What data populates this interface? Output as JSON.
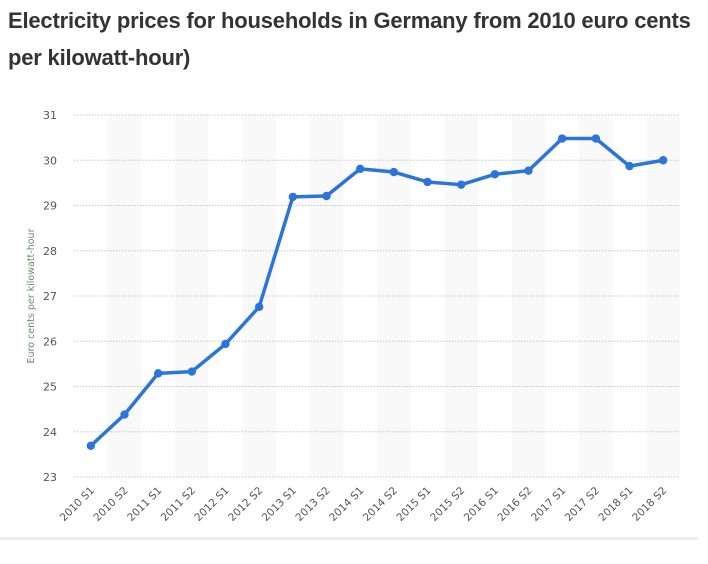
{
  "chart_data": {
    "type": "line",
    "title": "Electricity prices for households in Germany from 2010 euro cents per kilowatt-hour)",
    "xlabel": "",
    "ylabel": "Euro cents per kilowatt-hour",
    "ylim": [
      23,
      31
    ],
    "yticks": [
      "23",
      "24",
      "25",
      "26",
      "27",
      "28",
      "29",
      "30",
      "31"
    ],
    "grid": true,
    "categories": [
      "2010 S1",
      "2010 S2",
      "2011 S1",
      "2011 S2",
      "2012 S1",
      "2012 S2",
      "2013 S1",
      "2013 S2",
      "2014 S1",
      "2014 S2",
      "2015 S1",
      "2015 S2",
      "2016 S1",
      "2016 S2",
      "2017 S1",
      "2017 S2",
      "2018 S1",
      "2018 S2"
    ],
    "series": [
      {
        "values": [
          23.69,
          24.38,
          25.29,
          25.33,
          25.94,
          26.76,
          29.19,
          29.21,
          29.81,
          29.74,
          29.52,
          29.46,
          29.69,
          29.77,
          30.48,
          30.48,
          29.87,
          30.0
        ]
      }
    ],
    "colors": {
      "line": "#2a74db",
      "band": "#f9f9f9",
      "grid": "#c8c8c8",
      "axis_title": "#6b8e6b",
      "tick": "#555555"
    }
  }
}
